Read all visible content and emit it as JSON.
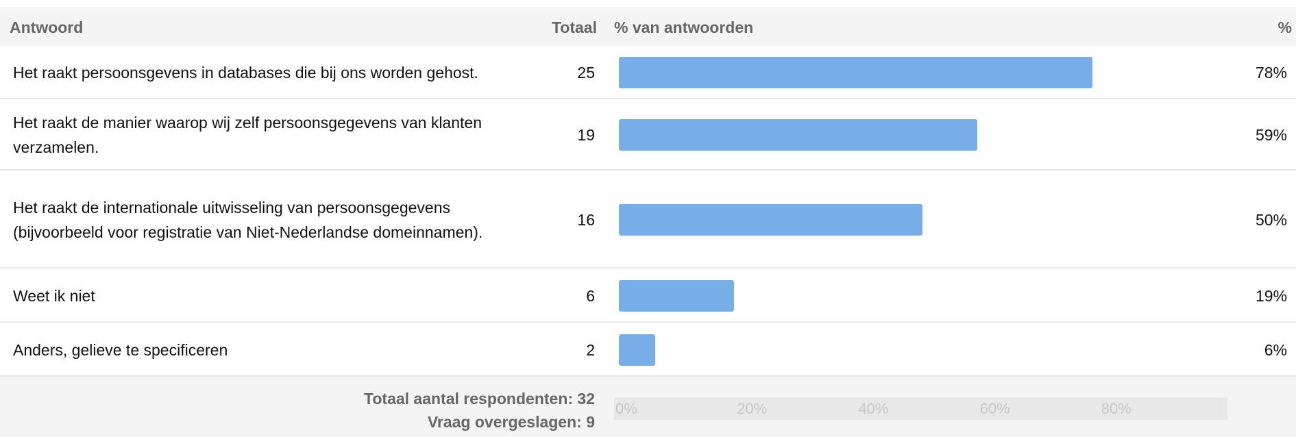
{
  "chart_data": {
    "type": "bar",
    "orientation": "horizontal",
    "columns": [
      "Antwoord",
      "Totaal",
      "% van antwoorden",
      "%"
    ],
    "categories": [
      "Het raakt persoonsgevens in databases die bij ons worden gehost.",
      "Het raakt de manier waarop wij zelf persoonsgegevens van klanten verzamelen.",
      "Het raakt de internationale uitwisseling van persoonsgegevens (bijvoorbeeld voor registratie van Niet-Nederlandse domeinnamen).",
      "Weet ik niet",
      "Anders, gelieve te specificeren"
    ],
    "counts": [
      25,
      19,
      16,
      6,
      2
    ],
    "values": [
      78,
      59,
      50,
      19,
      6
    ],
    "value_labels": [
      "78%",
      "59%",
      "50%",
      "19%",
      "6%"
    ],
    "color": "#77aee8",
    "xlim": [
      0,
      100
    ],
    "xticks": [
      {
        "value": 0,
        "label": "0%"
      },
      {
        "value": 20,
        "label": "20%"
      },
      {
        "value": 40,
        "label": "40%"
      },
      {
        "value": 60,
        "label": "60%"
      },
      {
        "value": 80,
        "label": "80%"
      }
    ],
    "footer": [
      "Totaal aantal respondenten: 32",
      "Vraag overgeslagen: 9"
    ]
  }
}
